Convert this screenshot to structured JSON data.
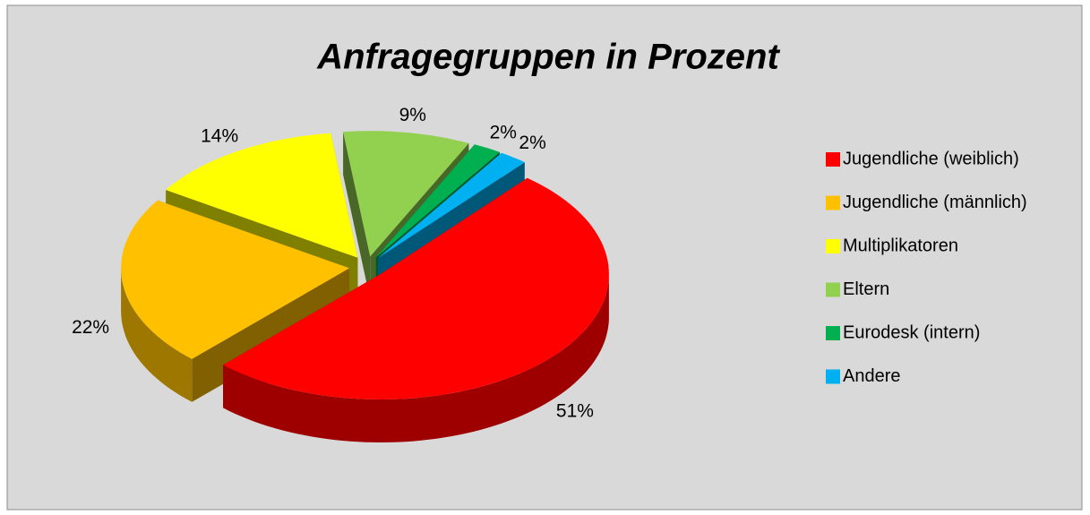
{
  "chart_data": {
    "type": "pie",
    "title": "Anfragegruppen in Prozent",
    "categories": [
      "Jugendliche (weiblich)",
      "Jugendliche (männlich)",
      "Multiplikatoren",
      "Eltern",
      "Eurodesk (intern)",
      "Andere"
    ],
    "values": [
      51,
      22,
      14,
      9,
      2,
      2
    ],
    "value_labels": [
      "51%",
      "22%",
      "14%",
      "9%",
      "2%",
      "2%"
    ],
    "colors": [
      "#ff0000",
      "#ffc000",
      "#ffff00",
      "#92d050",
      "#00b050",
      "#00b0f0"
    ],
    "legend": "right"
  }
}
